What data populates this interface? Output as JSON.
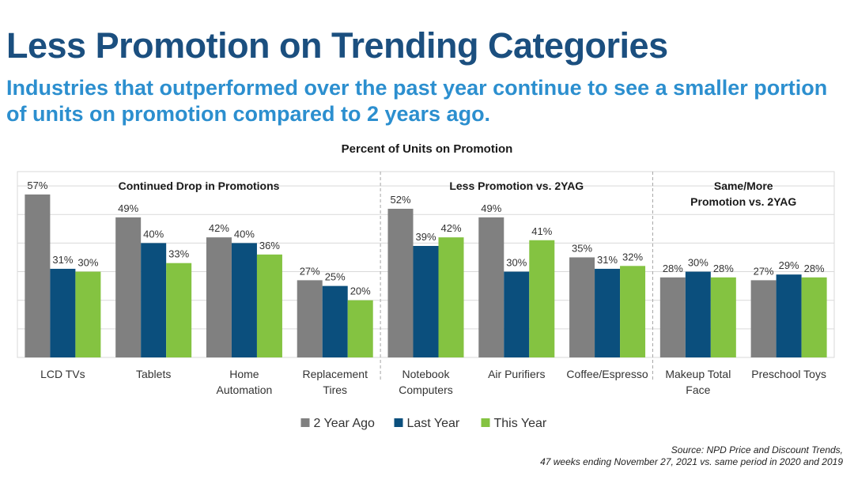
{
  "header": {
    "title": "Less Promotion on Trending Categories",
    "subtitle": "Industries that outperformed over the past year continue to see a smaller portion of units on promotion compared to 2 years ago."
  },
  "chart_data": {
    "type": "bar",
    "title": "Percent of Units on Promotion",
    "ylim": [
      0,
      65
    ],
    "grid": true,
    "legend_position": "bottom",
    "groups": [
      {
        "label": [
          "Continued Drop in Promotions"
        ],
        "category_count": 4
      },
      {
        "label": [
          "Less Promotion vs. 2YAG"
        ],
        "category_count": 3
      },
      {
        "label": [
          "Same/More",
          "Promotion vs. 2YAG"
        ],
        "category_count": 2
      }
    ],
    "categories": [
      [
        "LCD TVs"
      ],
      [
        "Tablets"
      ],
      [
        "Home",
        "Automation"
      ],
      [
        "Replacement",
        "Tires"
      ],
      [
        "Notebook",
        "Computers"
      ],
      [
        "Air Purifiers"
      ],
      [
        "Coffee/Espresso"
      ],
      [
        "Makeup Total",
        "Face"
      ],
      [
        "Preschool Toys"
      ]
    ],
    "series": [
      {
        "name": "2 Year Ago",
        "color": "#808080",
        "values": [
          57,
          49,
          42,
          27,
          52,
          49,
          35,
          28,
          27
        ]
      },
      {
        "name": "Last Year",
        "color": "#0b4f7d",
        "values": [
          31,
          40,
          40,
          25,
          39,
          30,
          31,
          30,
          29
        ]
      },
      {
        "name": "This Year",
        "color": "#84c341",
        "values": [
          30,
          33,
          36,
          20,
          42,
          41,
          32,
          28,
          28
        ]
      }
    ],
    "value_suffix": "%"
  },
  "source": {
    "line1": "Source:  NPD Price and Discount Trends,",
    "line2": "47 weeks ending November 27, 2021 vs. same period in 2020 and 2019"
  }
}
